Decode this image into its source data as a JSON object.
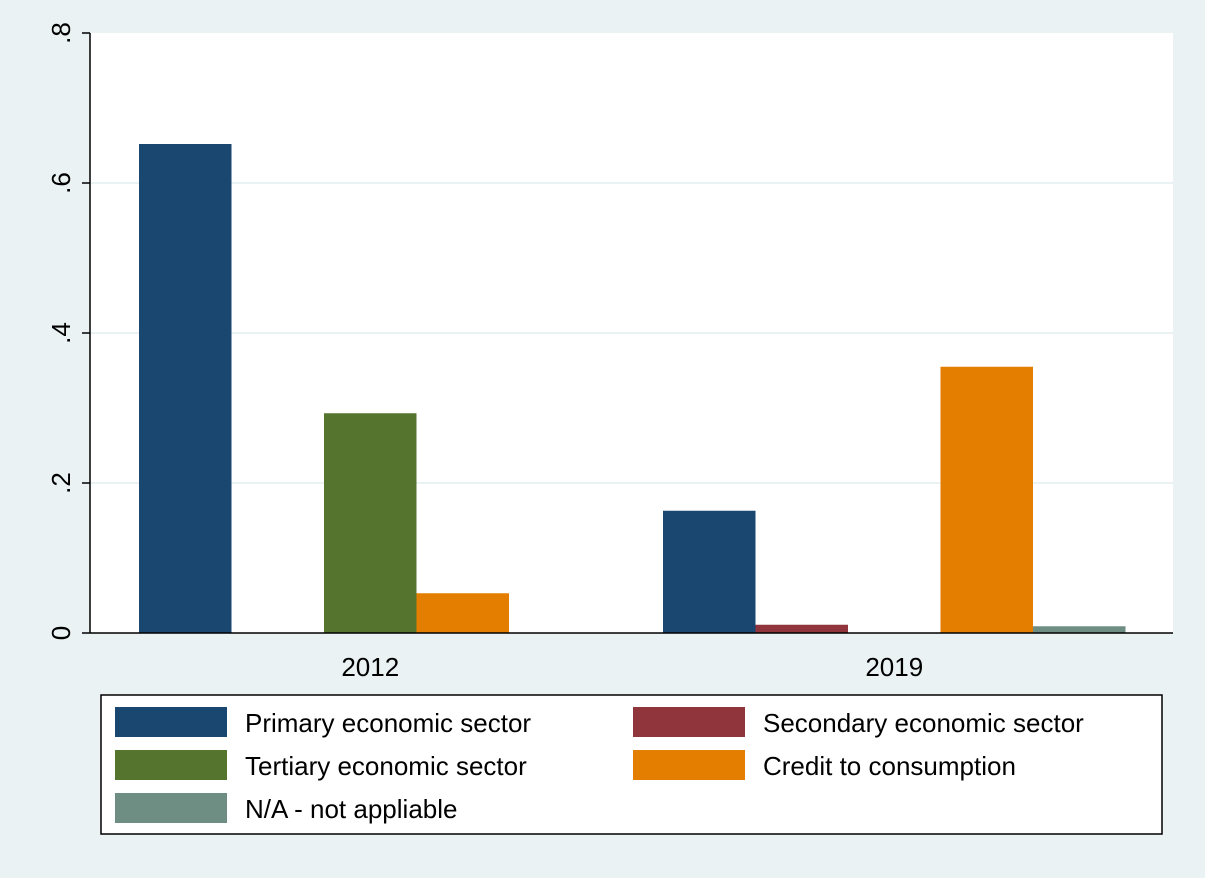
{
  "chart_data": {
    "type": "bar",
    "title": "",
    "xlabel": "",
    "ylabel": "",
    "categories": [
      "2012",
      "2019"
    ],
    "ylim": [
      0,
      0.8
    ],
    "yticks": [
      0,
      0.2,
      0.4,
      0.6,
      0.8
    ],
    "ytick_labels": [
      "0",
      ".2",
      ".4",
      ".6",
      ".8"
    ],
    "grid": true,
    "legend_position": "bottom",
    "background_color": "#eaf2f3",
    "plot_background_color": "#ffffff",
    "series": [
      {
        "name": "Primary economic sector",
        "color": "#1a476f",
        "values": [
          0.652,
          0.163
        ]
      },
      {
        "name": "Secondary economic sector",
        "color": "#90353b",
        "values": [
          0.0,
          0.011
        ]
      },
      {
        "name": "Tertiary economic sector",
        "color": "#55752f",
        "values": [
          0.293,
          0.0
        ]
      },
      {
        "name": "Credit to consumption",
        "color": "#e37e00",
        "values": [
          0.053,
          0.355
        ]
      },
      {
        "name": "N/A - not appliable",
        "color": "#6e8e84",
        "values": [
          0.0,
          0.009
        ]
      }
    ]
  }
}
